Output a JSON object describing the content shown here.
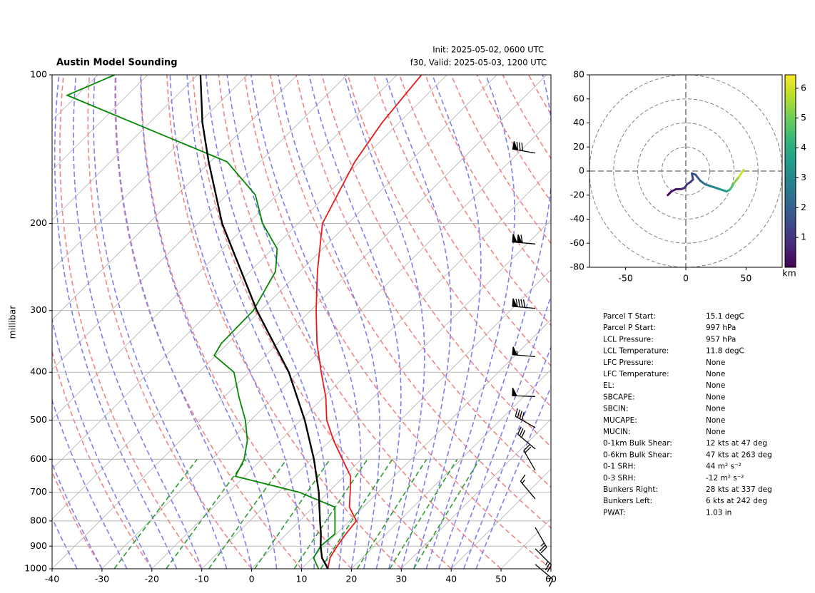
{
  "chart_data": [
    {
      "type": "skewt",
      "title": "Austin Model Sounding",
      "annotations": [
        "Init: 2025-05-02, 0600 UTC",
        "f30, Valid: 2025-05-03, 1200 UTC"
      ],
      "ylabel": "millibar",
      "xlim": [
        -40,
        60
      ],
      "xticks": [
        -40,
        -30,
        -20,
        -10,
        0,
        10,
        20,
        30,
        40,
        50,
        60
      ],
      "ylim": [
        1000,
        100
      ],
      "yticks": [
        100,
        200,
        300,
        400,
        500,
        600,
        700,
        800,
        900,
        1000
      ],
      "log_scale": true,
      "grid": true,
      "series": [
        {
          "color": "#e41a1c",
          "pressure": [
            1000,
            950,
            900,
            850,
            800,
            750,
            700,
            650,
            600,
            550,
            500,
            450,
            400,
            350,
            300,
            250,
            200,
            150,
            125,
            100
          ],
          "values": [
            15.3,
            13.5,
            12.6,
            11.9,
            11.4,
            7.2,
            4.4,
            1.3,
            -3.8,
            -9.3,
            -14.8,
            -19.5,
            -25.5,
            -32.1,
            -38.9,
            -46.5,
            -55.1,
            -61,
            -63.4,
            -65.1
          ]
        },
        {
          "color": "#008800",
          "pressure": [
            1000,
            950,
            900,
            850,
            800,
            750,
            700,
            650,
            600,
            550,
            500,
            450,
            400,
            370,
            350,
            300,
            250,
            225,
            200,
            175,
            150,
            110,
            100
          ],
          "values": [
            13.4,
            10.2,
            9.3,
            9.7,
            7.1,
            4.3,
            -5.8,
            -21.8,
            -23.5,
            -26.6,
            -31.1,
            -36.9,
            -43,
            -50.3,
            -51.3,
            -51.5,
            -54.9,
            -59.1,
            -67.1,
            -74.3,
            -86.6,
            -132,
            -126.6
          ]
        },
        {
          "color": "#000000",
          "pressure": [
            1000,
            950,
            900,
            850,
            800,
            700,
            600,
            500,
            400,
            300,
            200,
            150,
            125,
            100
          ],
          "values": [
            15.3,
            11.9,
            9.3,
            6.9,
            4.1,
            -1.9,
            -9.5,
            -19.2,
            -32,
            -50.8,
            -75.2,
            -90.3,
            -99.4,
            -109.4
          ]
        }
      ],
      "barbs": {
        "pressure": [
          144,
          220,
          297,
          372,
          448,
          518,
          572,
          632,
          722,
          825,
          911,
          980
        ],
        "direction": [
          280,
          275,
          275,
          275,
          272,
          300,
          310,
          330,
          320,
          150,
          135,
          130
        ],
        "speed": [
          80,
          110,
          90,
          55,
          50,
          40,
          30,
          20,
          15,
          25,
          25,
          15
        ]
      }
    },
    {
      "type": "hodograph",
      "xlim": [
        -80,
        80
      ],
      "ylim": [
        -80,
        80
      ],
      "xticks": [
        -50,
        0,
        50
      ],
      "yticks": [
        -80,
        -60,
        -40,
        -20,
        0,
        20,
        40,
        60,
        80
      ],
      "rings": [
        20,
        40,
        60,
        80
      ],
      "u": [
        -15,
        -12,
        -8,
        -4,
        -1,
        1,
        4,
        6,
        5,
        8,
        12,
        16,
        22,
        28,
        34,
        37,
        40,
        44,
        48
      ],
      "v": [
        -20,
        -17,
        -15,
        -15,
        -14,
        -11,
        -9,
        -7,
        -2,
        -3,
        -8,
        -11,
        -13,
        -15,
        -17,
        -15,
        -10,
        -5,
        1
      ],
      "height": [
        0.05,
        0.2,
        0.35,
        0.5,
        0.7,
        0.9,
        1.1,
        1.3,
        1.5,
        1.7,
        2.0,
        2.4,
        2.8,
        3.2,
        3.6,
        4.2,
        4.9,
        5.6,
        6.3
      ],
      "colorbar": {
        "label": "km",
        "lim": [
          0,
          6.45
        ],
        "ticks": [
          1,
          2,
          3,
          4,
          5,
          6
        ],
        "colormap": [
          "#440154",
          "#482878",
          "#3e4989",
          "#31688e",
          "#26828e",
          "#1f9e89",
          "#35b779",
          "#6ece58",
          "#b5de2b",
          "#fde725"
        ]
      }
    }
  ],
  "parameters": {
    "rows": [
      [
        "Parcel T Start:",
        "15.1 degC"
      ],
      [
        "Parcel P Start:",
        "997 hPa"
      ],
      [
        "LCL Pressure:",
        "957 hPa"
      ],
      [
        "LCL Temperature:",
        "11.8 degC"
      ],
      [
        "LFC Pressure:",
        "None"
      ],
      [
        "LFC Temperature:",
        "None"
      ],
      [
        "EL:",
        "None"
      ],
      [
        "SBCAPE:",
        "None"
      ],
      [
        "SBCIN:",
        "None"
      ],
      [
        "MUCAPE:",
        "None"
      ],
      [
        "MUCIN:",
        "None"
      ],
      [
        "0-1km Bulk Shear:",
        "12 kts at 47 deg"
      ],
      [
        "0-6km Bulk Shear:",
        "47 kts at 263 deg"
      ],
      [
        "0-1 SRH:",
        "44 m² s⁻²"
      ],
      [
        "0-3 SRH:",
        "-12 m² s⁻²"
      ],
      [
        "Bunkers Right:",
        "28 kts at 337 deg"
      ],
      [
        "Bunkers Left:",
        "6 kts at 242 deg"
      ],
      [
        "PWAT:",
        "1.03 in"
      ]
    ]
  }
}
